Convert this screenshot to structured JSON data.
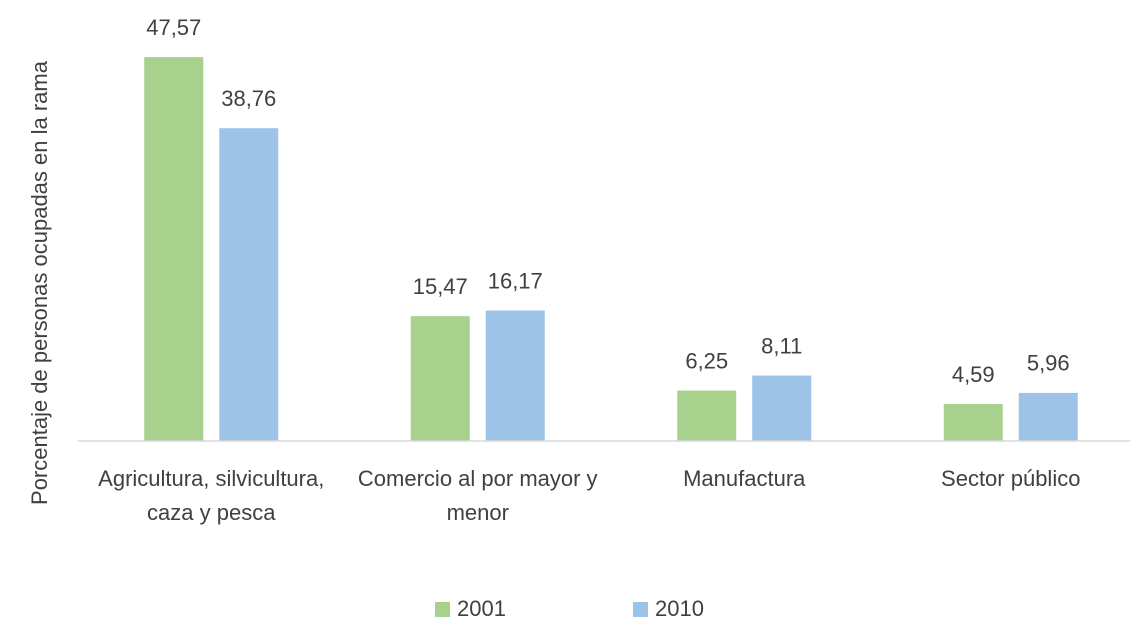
{
  "chart_data": {
    "type": "bar",
    "y_axis_label": "Porcentaje de personas ocupadas en la rama",
    "categories": [
      "Agricultura, silvicultura, caza y pesca",
      "Comercio al por mayor y menor",
      "Manufactura",
      "Sector público"
    ],
    "series": [
      {
        "name": "2001",
        "color": "#a9d18e",
        "values": [
          47.57,
          15.47,
          6.25,
          4.59
        ],
        "value_labels": [
          "47,57",
          "15,47",
          "6,25",
          "4,59"
        ]
      },
      {
        "name": "2010",
        "color": "#9dc3e6",
        "values": [
          38.76,
          16.17,
          8.11,
          5.96
        ],
        "value_labels": [
          "38,76",
          "16,17",
          "8,11",
          "5,96"
        ]
      }
    ],
    "ylim": [
      0,
      50
    ],
    "legend": "bottom"
  }
}
